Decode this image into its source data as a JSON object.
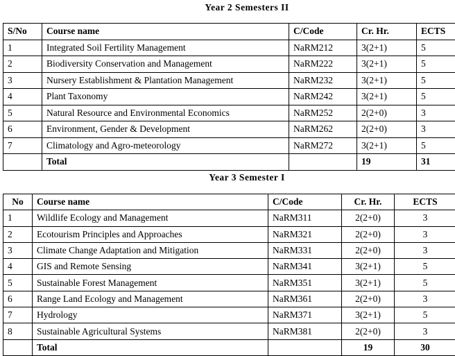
{
  "tables": [
    {
      "title": "Year 2 Semesters II",
      "columns": [
        "S/No",
        "Course name",
        "C/Code",
        "Cr. Hr.",
        "ECTS"
      ],
      "rows": [
        [
          "1",
          "Integrated Soil Fertility Management",
          "NaRM212",
          "3(2+1)",
          "5"
        ],
        [
          "2",
          "Biodiversity Conservation and Management",
          "NaRM222",
          "3(2+1)",
          "5"
        ],
        [
          "3",
          "Nursery Establishment & Plantation Management",
          "NaRM232",
          "3(2+1)",
          "5"
        ],
        [
          "4",
          "Plant Taxonomy",
          "NaRM242",
          "3(2+1)",
          "5"
        ],
        [
          "5",
          "Natural Resource and Environmental Economics",
          "NaRM252",
          "2(2+0)",
          "3"
        ],
        [
          "6",
          "Environment, Gender & Development",
          "NaRM262",
          "2(2+0)",
          "3"
        ],
        [
          "7",
          "Climatology and Agro-meteorology",
          "NaRM272",
          "3(2+1)",
          "5"
        ]
      ],
      "total": {
        "label": "Total",
        "credit": "19",
        "ects": "31"
      }
    },
    {
      "title": "Year 3 Semester I",
      "columns": [
        "No",
        "Course name",
        "C/Code",
        "Cr. Hr.",
        "ECTS"
      ],
      "rows": [
        [
          "1",
          "Wildlife Ecology and Management",
          "NaRM311",
          "2(2+0)",
          "3"
        ],
        [
          "2",
          "Ecotourism Principles and Approaches",
          "NaRM321",
          "2(2+0)",
          "3"
        ],
        [
          "3",
          "Climate Change Adaptation and Mitigation",
          "NaRM331",
          "2(2+0)",
          "3"
        ],
        [
          "4",
          "GIS and Remote Sensing",
          "NaRM341",
          "3(2+1)",
          "5"
        ],
        [
          "5",
          "Sustainable Forest Management",
          "NaRM351",
          "3(2+1)",
          "5"
        ],
        [
          "6",
          "Range Land Ecology and Management",
          "NaRM361",
          "2(2+0)",
          "3"
        ],
        [
          "7",
          "Hydrology",
          "NaRM371",
          "3(2+1)",
          "5"
        ],
        [
          "8",
          "Sustainable Agricultural Systems",
          "NaRM381",
          "2(2+0)",
          "3"
        ]
      ],
      "total": {
        "label": "Total",
        "credit": "19",
        "ects": "30"
      }
    }
  ]
}
